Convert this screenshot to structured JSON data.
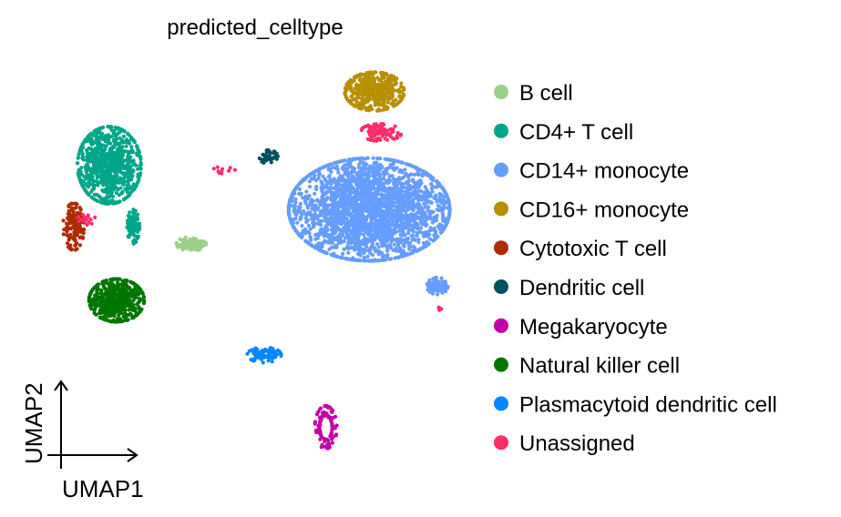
{
  "chart_data": {
    "type": "scatter",
    "title": "predicted_celltype",
    "xlabel": "UMAP1",
    "ylabel": "UMAP2",
    "xlim": [
      0,
      100
    ],
    "ylim": [
      0,
      100
    ],
    "grid": false,
    "legend_position": "right",
    "categories": [
      {
        "name": "B cell",
        "color": "#9ccf87"
      },
      {
        "name": "CD4+ T cell",
        "color": "#00a58a"
      },
      {
        "name": "CD14+ monocyte",
        "color": "#659cff"
      },
      {
        "name": "CD16+ monocyte",
        "color": "#b78f00"
      },
      {
        "name": "Cytotoxic T cell",
        "color": "#ae2b00"
      },
      {
        "name": "Dendritic cell",
        "color": "#00505f"
      },
      {
        "name": "Megakaryocyte",
        "color": "#c200a6"
      },
      {
        "name": "Natural killer cell",
        "color": "#007600"
      },
      {
        "name": "Plasmacytoid dendritic cell",
        "color": "#0087ff"
      },
      {
        "name": "Unassigned",
        "color": "#ff2d6a"
      }
    ],
    "clusters_approx": [
      {
        "category": 2,
        "center": [
          78.7,
          62.2
        ],
        "spread": [
          19,
          12
        ],
        "n": 2600
      },
      {
        "category": 2,
        "center": [
          95.5,
          43.5
        ],
        "spread": [
          2.5,
          2
        ],
        "n": 80
      },
      {
        "category": 3,
        "center": [
          80,
          91
        ],
        "spread": [
          7,
          4.5
        ],
        "n": 420
      },
      {
        "category": 1,
        "center": [
          14.6,
          73
        ],
        "spread": [
          7.5,
          9
        ],
        "n": 750
      },
      {
        "category": 1,
        "center": [
          20.5,
          58
        ],
        "spread": [
          1.5,
          4
        ],
        "n": 80
      },
      {
        "category": 0,
        "center": [
          34.8,
          53.8
        ],
        "spread": [
          3.5,
          1.6
        ],
        "n": 90
      },
      {
        "category": 4,
        "center": [
          5.8,
          58
        ],
        "spread": [
          2.5,
          5.5
        ],
        "n": 150
      },
      {
        "category": 7,
        "center": [
          16.4,
          40
        ],
        "spread": [
          6.5,
          5
        ],
        "n": 520
      },
      {
        "category": 5,
        "center": [
          53.9,
          75
        ],
        "spread": [
          2.2,
          1.6
        ],
        "n": 40
      },
      {
        "category": 6,
        "center": [
          68,
          9
        ],
        "spread": [
          2.6,
          5
        ],
        "n": 110
      },
      {
        "category": 8,
        "center": [
          52.8,
          26.7
        ],
        "spread": [
          4,
          1.8
        ],
        "n": 90
      },
      {
        "category": 9,
        "center": [
          81.5,
          81
        ],
        "spread": [
          5,
          2
        ],
        "n": 90
      },
      {
        "category": 9,
        "center": [
          9,
          60
        ],
        "spread": [
          2,
          1.5
        ],
        "n": 15
      },
      {
        "category": 9,
        "center": [
          43,
          72
        ],
        "spread": [
          2.5,
          1
        ],
        "n": 10
      },
      {
        "category": 9,
        "center": [
          96,
          38
        ],
        "spread": [
          0.6,
          0.5
        ],
        "n": 5
      }
    ]
  }
}
